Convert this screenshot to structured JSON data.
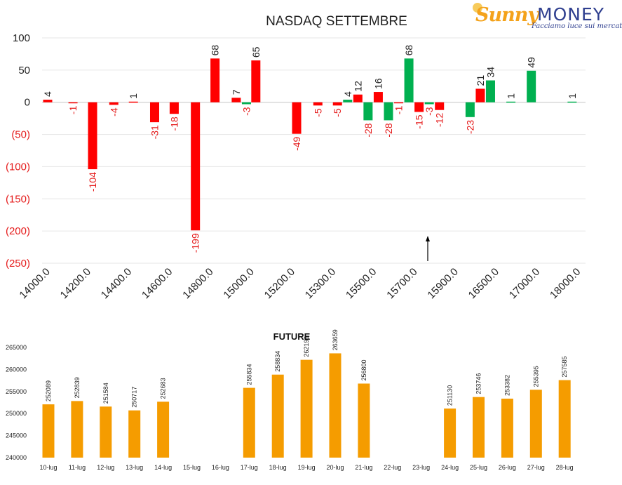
{
  "brand": {
    "name_part1": "Sunny",
    "name_part2": "MONEY",
    "tagline": "Facciamo luce sui mercati"
  },
  "colors": {
    "negative": "#ff0000",
    "positive": "#00b050",
    "future_bar": "#f59c00",
    "axis_text": "#222222",
    "negative_text": "#e51c1c",
    "grid": "#e6e6e6"
  },
  "chart_data": [
    {
      "type": "bar",
      "title": "NASDAQ SETTEMBRE",
      "categories": [
        "14000.0",
        "14200.0",
        "14400.0",
        "14600.0",
        "14800.0",
        "15000.0",
        "15200.0",
        "15300.0",
        "15500.0",
        "15700.0",
        "15900.0",
        "16500.0",
        "17000.0",
        "18000.0"
      ],
      "series": [
        {
          "color": "#ff0000",
          "values": [
            4,
            -1,
            -4,
            -18,
            68,
            65,
            null,
            -5,
            16,
            -15,
            -12,
            21,
            null,
            null
          ]
        },
        {
          "color": "#00b050",
          "values": [
            null,
            null,
            null,
            null,
            null,
            null,
            null,
            null,
            null,
            null,
            null,
            null,
            null,
            null
          ]
        }
      ],
      "bars": [
        {
          "x": 0.0,
          "value": 4,
          "kind": "neg"
        },
        {
          "x": 0.62,
          "value": -1,
          "kind": "neg"
        },
        {
          "x": 1.1,
          "value": -104,
          "kind": "neg"
        },
        {
          "x": 1.62,
          "value": -4,
          "kind": "neg"
        },
        {
          "x": 2.1,
          "value": 1,
          "kind": "neg"
        },
        {
          "x": 2.62,
          "value": -31,
          "kind": "neg"
        },
        {
          "x": 3.1,
          "value": -18,
          "kind": "neg"
        },
        {
          "x": 3.62,
          "value": -199,
          "kind": "neg"
        },
        {
          "x": 4.1,
          "value": 68,
          "kind": "neg"
        },
        {
          "x": 4.62,
          "value": 7,
          "kind": "neg"
        },
        {
          "x": 4.87,
          "value": -3,
          "kind": "pos"
        },
        {
          "x": 5.1,
          "value": 65,
          "kind": "neg"
        },
        {
          "x": 6.1,
          "value": -49,
          "kind": "neg"
        },
        {
          "x": 6.62,
          "value": -5,
          "kind": "neg"
        },
        {
          "x": 7.1,
          "value": -5,
          "kind": "neg"
        },
        {
          "x": 7.35,
          "value": 4,
          "kind": "pos"
        },
        {
          "x": 7.6,
          "value": 12,
          "kind": "neg"
        },
        {
          "x": 7.85,
          "value": -28,
          "kind": "pos"
        },
        {
          "x": 8.1,
          "value": 16,
          "kind": "neg"
        },
        {
          "x": 8.35,
          "value": -28,
          "kind": "pos"
        },
        {
          "x": 8.6,
          "value": -1,
          "kind": "neg"
        },
        {
          "x": 8.85,
          "value": 68,
          "kind": "pos"
        },
        {
          "x": 9.1,
          "value": -15,
          "kind": "neg"
        },
        {
          "x": 9.35,
          "value": -3,
          "kind": "pos"
        },
        {
          "x": 9.6,
          "value": -12,
          "kind": "neg"
        },
        {
          "x": 10.35,
          "value": -23,
          "kind": "pos"
        },
        {
          "x": 10.6,
          "value": 21,
          "kind": "neg"
        },
        {
          "x": 10.85,
          "value": 34,
          "kind": "pos"
        },
        {
          "x": 11.35,
          "value": 1,
          "kind": "pos"
        },
        {
          "x": 11.85,
          "value": 49,
          "kind": "pos"
        },
        {
          "x": 12.85,
          "value": 1,
          "kind": "pos"
        }
      ],
      "y_ticks": [
        "100",
        "50",
        "0",
        "(50)",
        "(100)",
        "(150)",
        "(200)",
        "(250)"
      ],
      "y_tick_values": [
        100,
        50,
        0,
        -50,
        -100,
        -150,
        -200,
        -250
      ],
      "ylim": [
        -250,
        100
      ],
      "grid": true,
      "annotation": "arrow-up near 15900.0"
    },
    {
      "type": "bar",
      "title": "FUTURE",
      "categories": [
        "10-lug",
        "11-lug",
        "12-lug",
        "13-lug",
        "14-lug",
        "15-lug",
        "16-lug",
        "17-lug",
        "18-lug",
        "19-lug",
        "20-lug",
        "21-lug",
        "22-lug",
        "23-lug",
        "24-lug",
        "25-lug",
        "26-lug",
        "27-lug",
        "28-lug"
      ],
      "values": [
        252089,
        252839,
        251584,
        250717,
        252683,
        null,
        null,
        255834,
        258834,
        262191,
        263659,
        256800,
        null,
        null,
        251130,
        253746,
        253382,
        255395,
        257585
      ],
      "value_labels": [
        "252089",
        "252839",
        "251584",
        "250717",
        "252683",
        "",
        "",
        "255834",
        "258834",
        "262191",
        "263659",
        "256800",
        "",
        "",
        "251130",
        "253746",
        "253382",
        "255395",
        "257585"
      ],
      "y_ticks": [
        "265000",
        "260000",
        "255000",
        "250000",
        "245000",
        "240000"
      ],
      "y_tick_values": [
        265000,
        260000,
        255000,
        250000,
        245000,
        240000
      ],
      "ylim": [
        240000,
        265000
      ],
      "grid": false
    }
  ]
}
